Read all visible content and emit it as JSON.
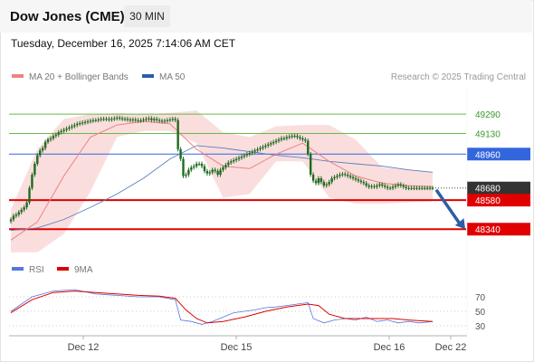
{
  "header": {
    "title": "Dow Jones (CME)",
    "timeframe": "30 MIN",
    "datetime": "Tuesday, December 16, 2025 7:14:06 AM CET"
  },
  "legend": {
    "ma20_bb": "MA 20 + Bollinger Bands",
    "ma50": "MA 50",
    "credit": "Research © 2025 Trading Central",
    "rsi": "RSI",
    "rsi_ma": "9MA"
  },
  "colors": {
    "bollinger_band": "#f7c8c8",
    "ma20": "#f08080",
    "ma50": "#5b7fbe",
    "candle": "#1f6b1f",
    "resistance": "#66bb44",
    "pivot": "#3366dd",
    "support": "#e00000",
    "last_price": "#333333",
    "forecast_arrow": "#2b5fa6",
    "rsi": "#5577dd",
    "rsi_ma": "#dd0000"
  },
  "chart_data": [
    {
      "type": "line",
      "name": "price",
      "title": "",
      "xlabel": "",
      "ylabel": "",
      "x_ticks": [
        "Dec 12",
        "Dec 15",
        "Dec 16",
        "Dec 22"
      ],
      "ylim": [
        48140,
        49500
      ],
      "levels": [
        {
          "label": "49290",
          "value": 49290,
          "kind": "resistance"
        },
        {
          "label": "49130",
          "value": 49130,
          "kind": "resistance"
        },
        {
          "label": "48960",
          "value": 48960,
          "kind": "pivot"
        },
        {
          "label": "48680",
          "value": 48680,
          "kind": "last"
        },
        {
          "label": "48580",
          "value": 48580,
          "kind": "support"
        },
        {
          "label": "48340",
          "value": 48340,
          "kind": "support"
        }
      ],
      "forecast_target": 48340,
      "series": [
        {
          "name": "close",
          "x": [
            0,
            1,
            2,
            3,
            4,
            5,
            6,
            7,
            8,
            9,
            10,
            11,
            12,
            13,
            14,
            15,
            16,
            17,
            18,
            19,
            20,
            21,
            22,
            23,
            24,
            25,
            26,
            27,
            28,
            29,
            30,
            31,
            32,
            33,
            34,
            35,
            36,
            37,
            38,
            39,
            40,
            41,
            42,
            43,
            44,
            45,
            46,
            47,
            48,
            49,
            50,
            51,
            52,
            53,
            54,
            55,
            56,
            57,
            58,
            59,
            60,
            61,
            62,
            63,
            64,
            65,
            66,
            67,
            68,
            69,
            70,
            71,
            72,
            73,
            74,
            75,
            76,
            77,
            78,
            79,
            80,
            81,
            82,
            83,
            84,
            85,
            86,
            87,
            88,
            89,
            90,
            91,
            92,
            93,
            94,
            95,
            96,
            97,
            98,
            99,
            100,
            101,
            102,
            103,
            104,
            105,
            106,
            107,
            108,
            109,
            110,
            111,
            112,
            113,
            114,
            115,
            116,
            117,
            118,
            119,
            120,
            121,
            122,
            123,
            124,
            125,
            126,
            127,
            128,
            129,
            130,
            131,
            132,
            133,
            134,
            135,
            136,
            137,
            138,
            139,
            140,
            141,
            142,
            143,
            144,
            145,
            146,
            147,
            148,
            149,
            150,
            151,
            152,
            153,
            154,
            155,
            156,
            157,
            158,
            159
          ],
          "values": [
            48420,
            48450,
            48460,
            48480,
            48500,
            48520,
            48560,
            48680,
            48790,
            48880,
            48950,
            48990,
            49010,
            49060,
            49080,
            49090,
            49110,
            49120,
            49140,
            49150,
            49160,
            49170,
            49180,
            49190,
            49200,
            49210,
            49215,
            49220,
            49225,
            49230,
            49235,
            49240,
            49240,
            49245,
            49250,
            49250,
            49250,
            49245,
            49250,
            49255,
            49260,
            49255,
            49250,
            49250,
            49245,
            49240,
            49245,
            49240,
            49235,
            49240,
            49245,
            49250,
            49255,
            49240,
            49250,
            49240,
            49235,
            49230,
            49235,
            49240,
            49245,
            49250,
            49240,
            49000,
            48920,
            48780,
            48790,
            48830,
            48850,
            48860,
            48880,
            48880,
            48860,
            48820,
            48800,
            48810,
            48830,
            48820,
            48790,
            48830,
            48850,
            48870,
            48890,
            48900,
            48910,
            48920,
            48930,
            48940,
            48950,
            48960,
            48970,
            48980,
            48990,
            49000,
            49010,
            49020,
            49030,
            49040,
            49050,
            49060,
            49070,
            49080,
            49090,
            49090,
            49100,
            49105,
            49110,
            49110,
            49100,
            49090,
            49080,
            49070,
            48960,
            48790,
            48740,
            48720,
            48760,
            48730,
            48700,
            48710,
            48730,
            48760,
            48770,
            48780,
            48790,
            48795,
            48790,
            48780,
            48770,
            48760,
            48750,
            48740,
            48730,
            48720,
            48700,
            48690,
            48695,
            48690,
            48700,
            48710,
            48700,
            48690,
            48680,
            48680,
            48690,
            48700,
            48710,
            48700,
            48690,
            48680,
            48680,
            48680,
            48680,
            48680,
            48680,
            48680,
            48680,
            48680,
            48680,
            48680
          ]
        },
        {
          "name": "MA 20",
          "x": [
            0,
            10,
            20,
            30,
            40,
            50,
            60,
            70,
            80,
            90,
            100,
            110,
            120,
            130,
            140,
            150,
            159
          ],
          "values": [
            48250,
            48400,
            48780,
            49100,
            49200,
            49230,
            49210,
            49000,
            48860,
            48840,
            48960,
            49050,
            48900,
            48780,
            48720,
            48700,
            48690
          ]
        },
        {
          "name": "MA 50",
          "x": [
            0,
            10,
            20,
            30,
            40,
            50,
            60,
            70,
            80,
            90,
            100,
            110,
            120,
            130,
            140,
            150,
            159
          ],
          "values": [
            48330,
            48350,
            48420,
            48520,
            48630,
            48760,
            48920,
            49030,
            49010,
            48980,
            48950,
            48930,
            48900,
            48880,
            48860,
            48830,
            48810
          ]
        },
        {
          "name": "Bollinger Upper",
          "x": [
            0,
            10,
            20,
            30,
            40,
            50,
            60,
            70,
            80,
            90,
            100,
            110,
            120,
            130,
            140,
            150,
            159
          ],
          "values": [
            48500,
            49000,
            49250,
            49290,
            49300,
            49290,
            49300,
            49320,
            49140,
            49100,
            49190,
            49200,
            49200,
            49080,
            48850,
            48830,
            48810
          ]
        },
        {
          "name": "Bollinger Lower",
          "x": [
            0,
            10,
            20,
            30,
            40,
            50,
            60,
            70,
            80,
            90,
            100,
            110,
            120,
            130,
            140,
            150,
            159
          ],
          "values": [
            48150,
            48150,
            48300,
            48650,
            49100,
            49150,
            49150,
            49050,
            48600,
            48630,
            48900,
            48900,
            48600,
            48550,
            48550,
            48560,
            48570
          ]
        }
      ]
    },
    {
      "type": "line",
      "name": "rsi",
      "title": "",
      "xlabel": "",
      "ylabel": "",
      "y_ticks": [
        70,
        50,
        30
      ],
      "ylim": [
        20,
        90
      ],
      "series": [
        {
          "name": "RSI",
          "x": [
            0,
            8,
            16,
            24,
            32,
            40,
            48,
            56,
            62,
            64,
            68,
            72,
            76,
            80,
            84,
            88,
            92,
            96,
            100,
            104,
            108,
            112,
            114,
            118,
            122,
            126,
            130,
            134,
            138,
            142,
            146,
            150,
            154,
            159
          ],
          "values": [
            50,
            70,
            78,
            80,
            74,
            72,
            70,
            70,
            66,
            38,
            36,
            32,
            36,
            42,
            48,
            50,
            52,
            55,
            56,
            58,
            60,
            62,
            40,
            34,
            38,
            40,
            38,
            42,
            36,
            38,
            34,
            36,
            34,
            36
          ]
        },
        {
          "name": "9MA",
          "x": [
            0,
            8,
            16,
            24,
            32,
            40,
            48,
            56,
            62,
            66,
            70,
            74,
            80,
            88,
            96,
            104,
            112,
            116,
            120,
            126,
            132,
            138,
            144,
            150,
            159
          ],
          "values": [
            48,
            66,
            76,
            78,
            76,
            74,
            72,
            71,
            68,
            52,
            40,
            34,
            36,
            42,
            50,
            56,
            60,
            58,
            46,
            40,
            40,
            40,
            40,
            38,
            36
          ]
        }
      ]
    }
  ]
}
